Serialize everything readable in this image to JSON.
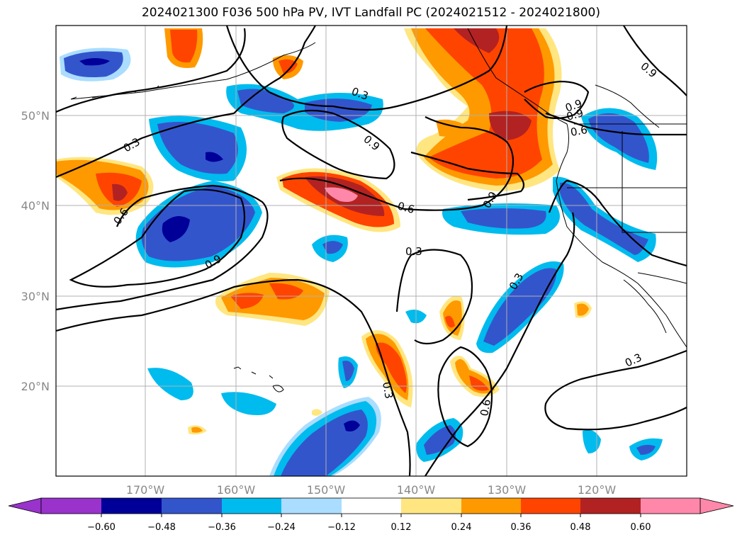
{
  "title": "2024021300 F036 500 hPa PV, IVT Landfall PC (2024021512 - 2024021800)",
  "map": {
    "lat_labels": [
      "50°N",
      "40°N",
      "30°N",
      "20°N"
    ],
    "lon_labels": [
      "170°W",
      "160°W",
      "150°W",
      "140°W",
      "130°W",
      "120°W"
    ],
    "contour_labels": [
      "0.3",
      "0.3",
      "0.3",
      "0.3",
      "0.3",
      "0.3",
      "0.6",
      "0.6",
      "0.6",
      "0.6",
      "0.9",
      "0.9",
      "0.9",
      "0.9",
      "0.9",
      "0.9"
    ]
  },
  "colorbar": {
    "ticks": [
      "−0.60",
      "−0.48",
      "−0.36",
      "−0.24",
      "−0.12",
      "0.12",
      "0.24",
      "0.36",
      "0.48",
      "0.60"
    ],
    "colors": [
      "#9933cc",
      "#000099",
      "#3355cc",
      "#00bbee",
      "#aaddff",
      "#ffffff",
      "#ffe680",
      "#ff9900",
      "#ff4400",
      "#b22222",
      "#ff88aa",
      "#ff88aa"
    ]
  },
  "palette": {
    "c_neg4": "#000099",
    "c_neg3": "#3355cc",
    "c_neg2": "#00bbee",
    "c_neg1": "#aaddff",
    "c_pos1": "#ffe680",
    "c_pos2": "#ff9900",
    "c_pos3": "#ff4400",
    "c_pos4": "#b22222",
    "c_pos5": "#ff88aa"
  }
}
